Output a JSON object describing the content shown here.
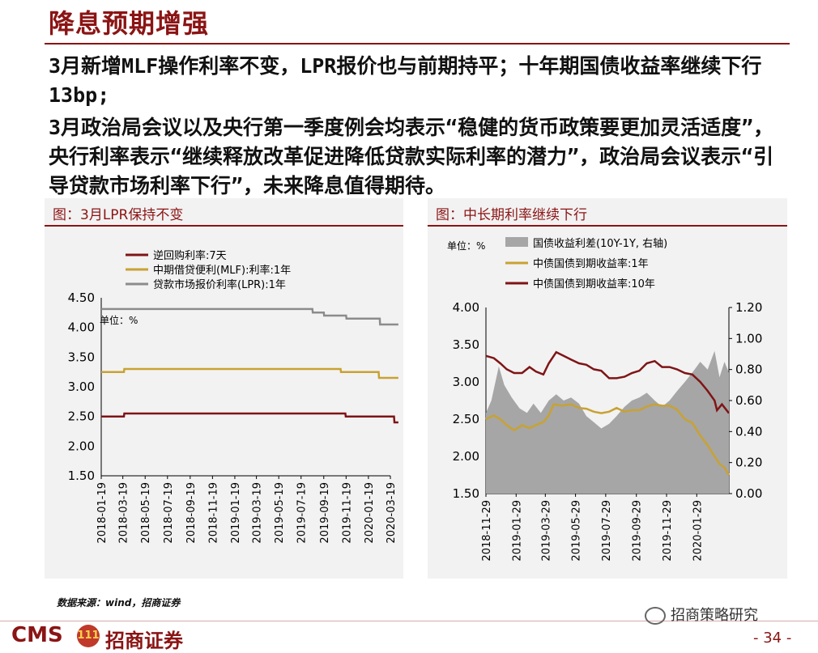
{
  "header": {
    "title": "降息预期增强"
  },
  "body": {
    "paragraph1": "3月新增MLF操作利率不变，LPR报价也与前期持平；十年期国债收益率继续下行13bp;",
    "paragraph2": "3月政治局会议以及央行第一季度例会均表示“稳健的货币政策要更加灵活适度”，央行利率表示“继续释放改革促进降低贷款实际利率的潜力”，政治局会议表示“引导贷款市场利率下行”，未来降息值得期待。"
  },
  "left_panel": {
    "title": "图：3月LPR保持不变"
  },
  "right_panel": {
    "title": "图：中长期利率继续下行"
  },
  "chart_data": [
    {
      "type": "line",
      "unit_label": "单位：%",
      "ylim": [
        1.5,
        4.5
      ],
      "yticks": [
        "4.50",
        "4.00",
        "3.50",
        "3.00",
        "2.50",
        "2.00",
        "1.50"
      ],
      "xticks": [
        "2018-01-19",
        "2018-03-19",
        "2018-05-19",
        "2018-07-19",
        "2018-09-19",
        "2018-11-19",
        "2019-01-19",
        "2019-03-19",
        "2019-05-19",
        "2019-07-19",
        "2019-09-19",
        "2019-11-19",
        "2020-01-19",
        "2020-03-19"
      ],
      "x_range": [
        "2018-01-19",
        "2020-03-19"
      ],
      "legend_position": "top-left",
      "series": [
        {
          "name": "逆回购利率:7天",
          "color": "#7f1416",
          "points": [
            [
              "2018-01-19",
              2.5
            ],
            [
              "2018-03-22",
              2.5
            ],
            [
              "2018-03-23",
              2.55
            ],
            [
              "2019-11-17",
              2.55
            ],
            [
              "2019-11-18",
              2.5
            ],
            [
              "2020-03-29",
              2.5
            ],
            [
              "2020-03-30",
              2.4
            ],
            [
              "2020-04-10",
              2.4
            ]
          ]
        },
        {
          "name": "中期借贷便利(MLF):利率:1年",
          "color": "#c8a232",
          "points": [
            [
              "2018-01-19",
              3.25
            ],
            [
              "2018-03-22",
              3.25
            ],
            [
              "2018-03-23",
              3.3
            ],
            [
              "2019-11-04",
              3.3
            ],
            [
              "2019-11-05",
              3.25
            ],
            [
              "2020-02-16",
              3.25
            ],
            [
              "2020-02-17",
              3.15
            ],
            [
              "2020-04-10",
              3.15
            ]
          ]
        },
        {
          "name": "贷款市场报价利率(LPR):1年",
          "color": "#8c8c8c",
          "points": [
            [
              "2018-01-19",
              4.31
            ],
            [
              "2018-03-22",
              4.31
            ],
            [
              "2018-03-23",
              4.31
            ],
            [
              "2019-08-19",
              4.31
            ],
            [
              "2019-08-20",
              4.25
            ],
            [
              "2019-09-19",
              4.25
            ],
            [
              "2019-09-20",
              4.2
            ],
            [
              "2019-11-19",
              4.2
            ],
            [
              "2019-11-20",
              4.15
            ],
            [
              "2020-02-19",
              4.15
            ],
            [
              "2020-02-20",
              4.05
            ],
            [
              "2020-04-10",
              4.05
            ]
          ]
        }
      ]
    },
    {
      "type": "line",
      "unit_label": "单位：%",
      "ylim": [
        1.5,
        4.0
      ],
      "y2lim": [
        0,
        1.2
      ],
      "yticks": [
        "4.00",
        "3.50",
        "3.00",
        "2.50",
        "2.00",
        "1.50"
      ],
      "y2ticks": [
        "1.20",
        "1.00",
        "0.80",
        "0.60",
        "0.40",
        "0.20",
        "0.00"
      ],
      "xticks": [
        "2018-11-29",
        "2019-01-29",
        "2019-03-29",
        "2019-05-29",
        "2019-07-29",
        "2019-09-29",
        "2019-11-29",
        "2020-01-29"
      ],
      "x_range": [
        "2018-11-29",
        "2020-04-03"
      ],
      "legend_position": "top-left",
      "series": [
        {
          "name": "国债收益利差(10Y-1Y, 右轴)",
          "type": "area",
          "axis": "right",
          "color": "#a6a6a6",
          "points": [
            [
              "2018-11-29",
              0.52
            ],
            [
              "2018-12-10",
              0.6
            ],
            [
              "2018-12-25",
              0.82
            ],
            [
              "2019-01-05",
              0.7
            ],
            [
              "2019-01-20",
              0.62
            ],
            [
              "2019-02-05",
              0.55
            ],
            [
              "2019-02-20",
              0.52
            ],
            [
              "2019-03-05",
              0.58
            ],
            [
              "2019-03-20",
              0.52
            ],
            [
              "2019-04-05",
              0.6
            ],
            [
              "2019-04-20",
              0.64
            ],
            [
              "2019-05-05",
              0.6
            ],
            [
              "2019-05-20",
              0.62
            ],
            [
              "2019-06-05",
              0.58
            ],
            [
              "2019-06-20",
              0.5
            ],
            [
              "2019-07-05",
              0.46
            ],
            [
              "2019-07-20",
              0.42
            ],
            [
              "2019-08-05",
              0.45
            ],
            [
              "2019-08-20",
              0.5
            ],
            [
              "2019-09-05",
              0.56
            ],
            [
              "2019-09-20",
              0.6
            ],
            [
              "2019-10-05",
              0.62
            ],
            [
              "2019-10-20",
              0.65
            ],
            [
              "2019-11-05",
              0.6
            ],
            [
              "2019-11-20",
              0.56
            ],
            [
              "2019-12-05",
              0.6
            ],
            [
              "2019-12-20",
              0.66
            ],
            [
              "2020-01-05",
              0.72
            ],
            [
              "2020-01-20",
              0.78
            ],
            [
              "2020-02-05",
              0.85
            ],
            [
              "2020-02-20",
              0.8
            ],
            [
              "2020-03-05",
              0.92
            ],
            [
              "2020-03-15",
              0.75
            ],
            [
              "2020-03-25",
              0.85
            ],
            [
              "2020-04-03",
              0.78
            ]
          ]
        },
        {
          "name": "中债国债到期收益率:1年",
          "type": "line",
          "axis": "left",
          "color": "#c8a232",
          "points": [
            [
              "2018-11-29",
              2.5
            ],
            [
              "2018-12-15",
              2.55
            ],
            [
              "2018-12-28",
              2.5
            ],
            [
              "2019-01-10",
              2.42
            ],
            [
              "2019-01-25",
              2.35
            ],
            [
              "2019-02-10",
              2.42
            ],
            [
              "2019-02-25",
              2.38
            ],
            [
              "2019-03-10",
              2.42
            ],
            [
              "2019-03-25",
              2.46
            ],
            [
              "2019-04-05",
              2.55
            ],
            [
              "2019-04-15",
              2.7
            ],
            [
              "2019-05-01",
              2.68
            ],
            [
              "2019-05-20",
              2.7
            ],
            [
              "2019-06-05",
              2.65
            ],
            [
              "2019-06-20",
              2.64
            ],
            [
              "2019-07-05",
              2.6
            ],
            [
              "2019-07-20",
              2.58
            ],
            [
              "2019-08-05",
              2.6
            ],
            [
              "2019-08-20",
              2.65
            ],
            [
              "2019-09-05",
              2.6
            ],
            [
              "2019-09-20",
              2.62
            ],
            [
              "2019-10-05",
              2.62
            ],
            [
              "2019-10-20",
              2.67
            ],
            [
              "2019-11-05",
              2.7
            ],
            [
              "2019-11-20",
              2.68
            ],
            [
              "2019-12-05",
              2.68
            ],
            [
              "2019-12-20",
              2.63
            ],
            [
              "2020-01-05",
              2.5
            ],
            [
              "2020-01-20",
              2.45
            ],
            [
              "2020-02-05",
              2.28
            ],
            [
              "2020-02-20",
              2.15
            ],
            [
              "2020-03-05",
              2.0
            ],
            [
              "2020-03-15",
              1.9
            ],
            [
              "2020-03-25",
              1.85
            ],
            [
              "2020-04-03",
              1.75
            ]
          ]
        },
        {
          "name": "中债国债到期收益率:10年",
          "type": "line",
          "axis": "left",
          "color": "#7f1416",
          "points": [
            [
              "2018-11-29",
              3.35
            ],
            [
              "2018-12-15",
              3.32
            ],
            [
              "2018-12-28",
              3.25
            ],
            [
              "2019-01-10",
              3.17
            ],
            [
              "2019-01-25",
              3.12
            ],
            [
              "2019-02-10",
              3.12
            ],
            [
              "2019-02-25",
              3.2
            ],
            [
              "2019-03-10",
              3.14
            ],
            [
              "2019-03-25",
              3.1
            ],
            [
              "2019-04-05",
              3.25
            ],
            [
              "2019-04-20",
              3.4
            ],
            [
              "2019-05-05",
              3.35
            ],
            [
              "2019-05-20",
              3.3
            ],
            [
              "2019-06-05",
              3.25
            ],
            [
              "2019-06-20",
              3.23
            ],
            [
              "2019-07-05",
              3.17
            ],
            [
              "2019-07-20",
              3.15
            ],
            [
              "2019-08-05",
              3.05
            ],
            [
              "2019-08-20",
              3.05
            ],
            [
              "2019-09-05",
              3.07
            ],
            [
              "2019-09-20",
              3.12
            ],
            [
              "2019-10-05",
              3.15
            ],
            [
              "2019-10-20",
              3.25
            ],
            [
              "2019-11-05",
              3.28
            ],
            [
              "2019-11-20",
              3.2
            ],
            [
              "2019-12-05",
              3.2
            ],
            [
              "2019-12-20",
              3.17
            ],
            [
              "2020-01-05",
              3.12
            ],
            [
              "2020-01-20",
              3.1
            ],
            [
              "2020-02-05",
              3.0
            ],
            [
              "2020-02-20",
              2.88
            ],
            [
              "2020-03-05",
              2.75
            ],
            [
              "2020-03-10",
              2.62
            ],
            [
              "2020-03-20",
              2.7
            ],
            [
              "2020-04-03",
              2.58
            ]
          ]
        }
      ]
    }
  ],
  "footer": {
    "source": "数据来源：wind，招商证券",
    "brand_en": "CMS",
    "brand_logo": "111",
    "brand_cn": "招商证券",
    "wechat": "招商策略研究",
    "page": "- 34 -"
  }
}
